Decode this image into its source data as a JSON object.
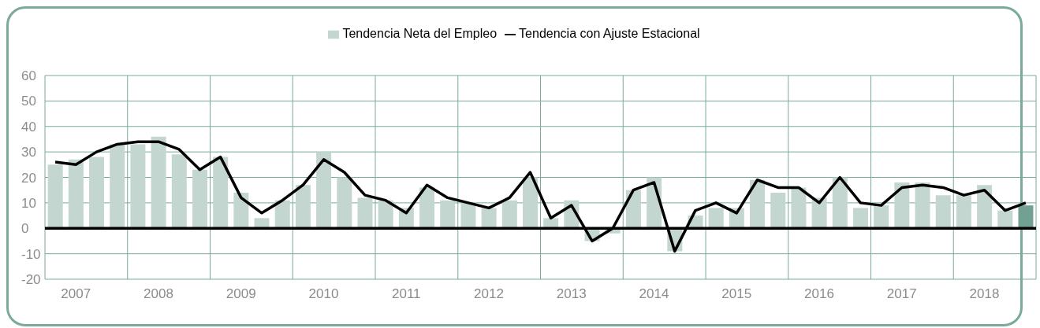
{
  "chart_data": {
    "type": "bar",
    "categories": [
      null,
      "2007",
      null,
      null,
      null,
      "2008",
      null,
      null,
      null,
      "2009",
      null,
      null,
      null,
      "2010",
      null,
      null,
      null,
      "2011",
      null,
      null,
      null,
      "2012",
      null,
      null,
      null,
      "2013",
      null,
      null,
      null,
      "2014",
      null,
      null,
      null,
      "2015",
      null,
      null,
      null,
      "2016",
      null,
      null,
      null,
      "2017",
      null,
      null,
      null,
      "2018",
      null,
      null
    ],
    "series": [
      {
        "name": "Tendencia Neta del Empleo",
        "color": "#c4d6d0",
        "colors": [
          "#c4d6d0",
          "#c4d6d0",
          "#c4d6d0",
          "#c4d6d0",
          "#c4d6d0",
          "#c4d6d0",
          "#c4d6d0",
          "#c4d6d0",
          "#c4d6d0",
          "#c4d6d0",
          "#c4d6d0",
          "#c4d6d0",
          "#c4d6d0",
          "#c4d6d0",
          "#c4d6d0",
          "#c4d6d0",
          "#c4d6d0",
          "#c4d6d0",
          "#c4d6d0",
          "#c4d6d0",
          "#c4d6d0",
          "#c4d6d0",
          "#c4d6d0",
          "#c4d6d0",
          "#c4d6d0",
          "#c4d6d0",
          "#c4d6d0",
          "#c4d6d0",
          "#c4d6d0",
          "#c4d6d0",
          "#c4d6d0",
          "#c4d6d0",
          "#c4d6d0",
          "#c4d6d0",
          "#c4d6d0",
          "#c4d6d0",
          "#c4d6d0",
          "#c4d6d0",
          "#c4d6d0",
          "#c4d6d0",
          "#c4d6d0",
          "#c4d6d0",
          "#c4d6d0",
          "#c4d6d0",
          "#c4d6d0",
          "#c4d6d0",
          "#c4d6d0",
          "#72a194"
        ],
        "values": [
          25,
          27,
          28,
          33,
          33,
          36,
          29,
          23,
          28,
          14,
          4,
          11,
          17,
          30,
          20,
          12,
          11,
          8,
          16,
          11,
          10,
          8,
          11,
          20,
          4,
          11,
          -5,
          -2,
          15,
          20,
          -9,
          5,
          8,
          8,
          19,
          14,
          16,
          12,
          20,
          8,
          9,
          18,
          18,
          13,
          13,
          17,
          7,
          9
        ]
      },
      {
        "name": "Tendencia con Ajuste Estacional",
        "type": "line",
        "color": "#000000",
        "values": [
          26,
          25,
          30,
          33,
          34,
          34,
          31,
          23,
          28,
          12,
          6,
          11,
          17,
          27,
          22,
          13,
          11,
          6,
          17,
          12,
          10,
          8,
          12,
          22,
          4,
          9,
          -5,
          0,
          15,
          18,
          -9,
          7,
          10,
          6,
          19,
          16,
          16,
          10,
          20,
          10,
          9,
          16,
          17,
          16,
          13,
          15,
          7,
          10
        ]
      }
    ],
    "ylim": [
      -20,
      60
    ],
    "yticks": [
      -20,
      -10,
      0,
      10,
      20,
      30,
      40,
      50,
      60
    ],
    "grid": true,
    "legend": "top",
    "ref_lines": [
      {
        "axis": "y",
        "value": 0,
        "color": "#000000"
      }
    ]
  }
}
